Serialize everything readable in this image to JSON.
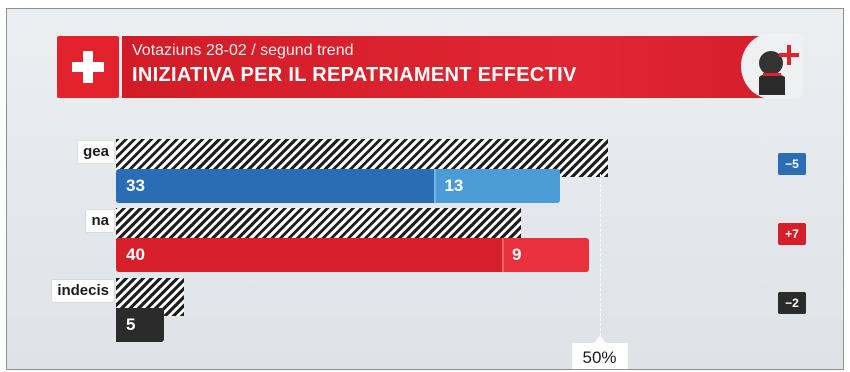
{
  "header": {
    "subtitle": "Votaziuns 28-02 / segund trend",
    "title": "INIZIATIVA PER IL REPATRIAMENT EFFECTIV"
  },
  "colors": {
    "brand_red": "#e3222d",
    "blue_dark": "#2a6db5",
    "blue_light": "#4a9bd6",
    "red_dark": "#d71f2b",
    "red_light": "#e8313c",
    "undecided": "#2b2b2b"
  },
  "chart_data": {
    "type": "bar",
    "orientation": "horizontal",
    "stacked": true,
    "categories": [
      "gea",
      "na",
      "indecis"
    ],
    "series": [
      {
        "values": [
          33,
          40,
          5
        ]
      },
      {
        "values": [
          13,
          9,
          null
        ]
      }
    ],
    "previous_totals_hatched": [
      51,
      42,
      7
    ],
    "changes": [
      "−5",
      "+7",
      "−2"
    ],
    "reference_line": {
      "value": 50,
      "label": "50%"
    },
    "xlim": [
      0,
      60
    ]
  }
}
